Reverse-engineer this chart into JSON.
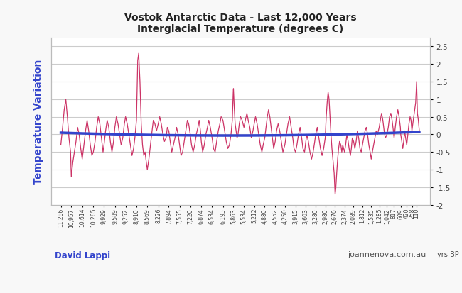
{
  "title_line1": "Vostok Antarctic Data - Last 12,000 Years",
  "title_line2": "Interglacial Temperature (degrees C)",
  "ylabel_left": "Temperature Variation",
  "ylabel_right": "yrs BP",
  "credit_left": "David Lappi",
  "credit_right": "joannenova.com.au",
  "line_color": "#cc3366",
  "trend_color": "#3344cc",
  "background_color": "#f5f5fa",
  "grid_color": "#cccccc",
  "ylim": [
    -2.0,
    2.75
  ],
  "yticks": [
    -2.0,
    -1.5,
    -1.0,
    -0.5,
    0.0,
    0.5,
    1.0,
    1.5,
    2.0,
    2.5
  ],
  "x_years": [
    11286,
    10957,
    10614,
    10265,
    9929,
    9589,
    9252,
    8910,
    8569,
    8226,
    7894,
    7555,
    7220,
    6874,
    6534,
    6193,
    5863,
    5534,
    5212,
    4880,
    4552,
    4250,
    3915,
    3603,
    3280,
    2980,
    2670,
    2374,
    2089,
    1812,
    1535,
    1285,
    1042,
    817,
    609,
    420,
    258,
    110
  ],
  "xtick_labels": [
    "11,286",
    "10,957",
    "10,614",
    "10,265",
    "9,929",
    "9,589",
    "9,252",
    "8,910",
    "8,569",
    "8,226",
    "7,894",
    "7,555",
    "7,220",
    "6,874",
    "6,534",
    "6,193",
    "5,863",
    "5,534",
    "5,212",
    "4,880",
    "4,552",
    "4,250",
    "3,915",
    "3,603",
    "3,280",
    "2,980",
    "2,670",
    "2,374",
    "2,089",
    "1,812",
    "1,535",
    "1,285",
    "1,042",
    "817",
    "609",
    "420",
    "258",
    "110"
  ],
  "temp_data": [
    [
      11286,
      -0.3
    ],
    [
      11230,
      0.2
    ],
    [
      11180,
      0.7
    ],
    [
      11130,
      1.0
    ],
    [
      11080,
      0.5
    ],
    [
      11030,
      -0.1
    ],
    [
      10980,
      -0.5
    ],
    [
      10957,
      -1.2
    ],
    [
      10910,
      -0.8
    ],
    [
      10860,
      -0.5
    ],
    [
      10810,
      -0.2
    ],
    [
      10760,
      0.2
    ],
    [
      10710,
      0.0
    ],
    [
      10660,
      -0.4
    ],
    [
      10614,
      -0.7
    ],
    [
      10560,
      -0.3
    ],
    [
      10510,
      0.1
    ],
    [
      10460,
      0.4
    ],
    [
      10410,
      0.1
    ],
    [
      10360,
      -0.3
    ],
    [
      10310,
      -0.6
    ],
    [
      10265,
      -0.5
    ],
    [
      10210,
      -0.2
    ],
    [
      10160,
      0.2
    ],
    [
      10110,
      0.5
    ],
    [
      10060,
      0.3
    ],
    [
      10010,
      -0.1
    ],
    [
      9960,
      -0.5
    ],
    [
      9929,
      -0.3
    ],
    [
      9880,
      0.1
    ],
    [
      9830,
      0.4
    ],
    [
      9780,
      0.2
    ],
    [
      9730,
      -0.2
    ],
    [
      9680,
      -0.5
    ],
    [
      9630,
      -0.2
    ],
    [
      9589,
      0.2
    ],
    [
      9540,
      0.5
    ],
    [
      9490,
      0.3
    ],
    [
      9440,
      0.0
    ],
    [
      9390,
      -0.3
    ],
    [
      9340,
      -0.1
    ],
    [
      9290,
      0.3
    ],
    [
      9252,
      0.5
    ],
    [
      9200,
      0.3
    ],
    [
      9150,
      0.0
    ],
    [
      9100,
      -0.3
    ],
    [
      9050,
      -0.6
    ],
    [
      9000,
      -0.4
    ],
    [
      8960,
      -0.1
    ],
    [
      8910,
      0.4
    ],
    [
      8870,
      2.1
    ],
    [
      8840,
      2.3
    ],
    [
      8800,
      1.5
    ],
    [
      8760,
      0.3
    ],
    [
      8720,
      -0.3
    ],
    [
      8680,
      -0.6
    ],
    [
      8640,
      -0.5
    ],
    [
      8600,
      -0.8
    ],
    [
      8569,
      -1.0
    ],
    [
      8520,
      -0.7
    ],
    [
      8470,
      -0.3
    ],
    [
      8420,
      0.1
    ],
    [
      8380,
      0.4
    ],
    [
      8330,
      0.3
    ],
    [
      8280,
      0.1
    ],
    [
      8226,
      0.3
    ],
    [
      8180,
      0.5
    ],
    [
      8130,
      0.3
    ],
    [
      8080,
      0.0
    ],
    [
      8030,
      -0.2
    ],
    [
      7980,
      -0.1
    ],
    [
      7940,
      0.2
    ],
    [
      7894,
      0.1
    ],
    [
      7850,
      -0.2
    ],
    [
      7800,
      -0.5
    ],
    [
      7750,
      -0.3
    ],
    [
      7700,
      -0.1
    ],
    [
      7650,
      0.2
    ],
    [
      7600,
      0.0
    ],
    [
      7555,
      -0.3
    ],
    [
      7510,
      -0.6
    ],
    [
      7460,
      -0.5
    ],
    [
      7410,
      -0.2
    ],
    [
      7360,
      0.1
    ],
    [
      7310,
      0.4
    ],
    [
      7270,
      0.3
    ],
    [
      7220,
      0.0
    ],
    [
      7180,
      -0.3
    ],
    [
      7130,
      -0.5
    ],
    [
      7080,
      -0.3
    ],
    [
      7030,
      0.0
    ],
    [
      6980,
      0.2
    ],
    [
      6940,
      0.4
    ],
    [
      6900,
      0.1
    ],
    [
      6874,
      -0.2
    ],
    [
      6830,
      -0.5
    ],
    [
      6780,
      -0.3
    ],
    [
      6730,
      0.0
    ],
    [
      6680,
      0.2
    ],
    [
      6640,
      0.4
    ],
    [
      6590,
      0.2
    ],
    [
      6534,
      -0.1
    ],
    [
      6490,
      -0.4
    ],
    [
      6440,
      -0.5
    ],
    [
      6390,
      -0.2
    ],
    [
      6340,
      0.1
    ],
    [
      6290,
      0.3
    ],
    [
      6250,
      0.5
    ],
    [
      6193,
      0.4
    ],
    [
      6140,
      0.1
    ],
    [
      6090,
      -0.2
    ],
    [
      6040,
      -0.4
    ],
    [
      5990,
      -0.3
    ],
    [
      5940,
      0.0
    ],
    [
      5900,
      0.4
    ],
    [
      5870,
      1.2
    ],
    [
      5863,
      1.3
    ],
    [
      5840,
      0.8
    ],
    [
      5810,
      0.3
    ],
    [
      5780,
      0.1
    ],
    [
      5750,
      -0.1
    ],
    [
      5720,
      0.0
    ],
    [
      5680,
      0.3
    ],
    [
      5640,
      0.5
    ],
    [
      5590,
      0.4
    ],
    [
      5534,
      0.2
    ],
    [
      5490,
      0.4
    ],
    [
      5440,
      0.6
    ],
    [
      5400,
      0.4
    ],
    [
      5350,
      0.2
    ],
    [
      5300,
      -0.1
    ],
    [
      5250,
      0.1
    ],
    [
      5212,
      0.3
    ],
    [
      5170,
      0.5
    ],
    [
      5120,
      0.3
    ],
    [
      5070,
      0.0
    ],
    [
      5020,
      -0.3
    ],
    [
      4970,
      -0.5
    ],
    [
      4930,
      -0.3
    ],
    [
      4880,
      -0.1
    ],
    [
      4840,
      0.2
    ],
    [
      4800,
      0.5
    ],
    [
      4760,
      0.7
    ],
    [
      4720,
      0.5
    ],
    [
      4680,
      0.2
    ],
    [
      4640,
      -0.1
    ],
    [
      4600,
      -0.4
    ],
    [
      4552,
      -0.2
    ],
    [
      4510,
      0.1
    ],
    [
      4460,
      0.3
    ],
    [
      4410,
      0.1
    ],
    [
      4360,
      -0.2
    ],
    [
      4310,
      -0.5
    ],
    [
      4250,
      -0.3
    ],
    [
      4200,
      0.0
    ],
    [
      4150,
      0.3
    ],
    [
      4100,
      0.5
    ],
    [
      4050,
      0.2
    ],
    [
      4000,
      -0.1
    ],
    [
      3960,
      -0.4
    ],
    [
      3915,
      -0.5
    ],
    [
      3870,
      -0.3
    ],
    [
      3820,
      0.0
    ],
    [
      3770,
      0.2
    ],
    [
      3720,
      -0.1
    ],
    [
      3680,
      -0.4
    ],
    [
      3630,
      -0.5
    ],
    [
      3603,
      -0.3
    ],
    [
      3560,
      0.0
    ],
    [
      3510,
      -0.2
    ],
    [
      3460,
      -0.5
    ],
    [
      3410,
      -0.7
    ],
    [
      3360,
      -0.5
    ],
    [
      3310,
      -0.2
    ],
    [
      3280,
      0.0
    ],
    [
      3230,
      0.2
    ],
    [
      3180,
      -0.1
    ],
    [
      3130,
      -0.4
    ],
    [
      3080,
      -0.6
    ],
    [
      3030,
      -0.4
    ],
    [
      2980,
      -0.1
    ],
    [
      2950,
      0.5
    ],
    [
      2920,
      0.9
    ],
    [
      2890,
      1.2
    ],
    [
      2860,
      1.0
    ],
    [
      2830,
      0.5
    ],
    [
      2800,
      0.0
    ],
    [
      2770,
      -0.4
    ],
    [
      2730,
      -0.8
    ],
    [
      2700,
      -1.1
    ],
    [
      2670,
      -1.7
    ],
    [
      2650,
      -1.55
    ],
    [
      2620,
      -1.1
    ],
    [
      2590,
      -0.7
    ],
    [
      2560,
      -0.4
    ],
    [
      2530,
      -0.2
    ],
    [
      2490,
      -0.3
    ],
    [
      2460,
      -0.5
    ],
    [
      2430,
      -0.3
    ],
    [
      2374,
      -0.5
    ],
    [
      2340,
      -0.3
    ],
    [
      2300,
      0.0
    ],
    [
      2260,
      -0.2
    ],
    [
      2230,
      -0.4
    ],
    [
      2190,
      -0.6
    ],
    [
      2160,
      -0.4
    ],
    [
      2130,
      -0.1
    ],
    [
      2089,
      -0.2
    ],
    [
      2050,
      -0.4
    ],
    [
      2010,
      -0.2
    ],
    [
      1970,
      0.1
    ],
    [
      1930,
      -0.1
    ],
    [
      1890,
      -0.4
    ],
    [
      1850,
      -0.5
    ],
    [
      1812,
      -0.3
    ],
    [
      1770,
      -0.1
    ],
    [
      1730,
      0.1
    ],
    [
      1690,
      0.2
    ],
    [
      1650,
      0.0
    ],
    [
      1610,
      -0.3
    ],
    [
      1570,
      -0.5
    ],
    [
      1535,
      -0.7
    ],
    [
      1500,
      -0.5
    ],
    [
      1460,
      -0.3
    ],
    [
      1420,
      -0.1
    ],
    [
      1380,
      0.1
    ],
    [
      1340,
      0.0
    ],
    [
      1285,
      0.2
    ],
    [
      1250,
      0.4
    ],
    [
      1210,
      0.6
    ],
    [
      1170,
      0.4
    ],
    [
      1130,
      0.1
    ],
    [
      1090,
      -0.1
    ],
    [
      1042,
      0.0
    ],
    [
      1000,
      0.2
    ],
    [
      960,
      0.5
    ],
    [
      920,
      0.6
    ],
    [
      880,
      0.4
    ],
    [
      840,
      0.1
    ],
    [
      817,
      -0.1
    ],
    [
      780,
      0.2
    ],
    [
      740,
      0.5
    ],
    [
      700,
      0.7
    ],
    [
      660,
      0.5
    ],
    [
      620,
      0.2
    ],
    [
      609,
      0.0
    ],
    [
      575,
      -0.2
    ],
    [
      545,
      -0.4
    ],
    [
      515,
      -0.2
    ],
    [
      485,
      0.1
    ],
    [
      455,
      -0.1
    ],
    [
      420,
      -0.3
    ],
    [
      385,
      0.0
    ],
    [
      350,
      0.3
    ],
    [
      315,
      0.5
    ],
    [
      285,
      0.4
    ],
    [
      258,
      0.1
    ],
    [
      230,
      0.3
    ],
    [
      200,
      0.5
    ],
    [
      170,
      0.7
    ],
    [
      140,
      0.9
    ],
    [
      110,
      1.5
    ],
    [
      85,
      0.6
    ],
    [
      55,
      0.4
    ],
    [
      25,
      0.1
    ]
  ]
}
